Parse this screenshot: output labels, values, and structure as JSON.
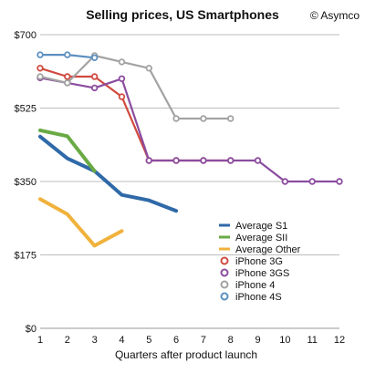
{
  "chart_data": {
    "type": "line",
    "title": "Selling prices, US Smartphones",
    "copyright": "© Asymco",
    "xlabel": "Quarters after product launch",
    "ylabel": "",
    "xlim": [
      1,
      12
    ],
    "ylim": [
      0,
      700
    ],
    "x_ticks": [
      1,
      2,
      3,
      4,
      5,
      6,
      7,
      8,
      9,
      10,
      11,
      12
    ],
    "y_ticks": [
      {
        "value": 0,
        "label": "$0"
      },
      {
        "value": 175,
        "label": "$175"
      },
      {
        "value": 350,
        "label": "$350"
      },
      {
        "value": 525,
        "label": "$525"
      },
      {
        "value": 700,
        "label": "$700"
      }
    ],
    "grid": "horizontal",
    "legend_position": "inside-bottom-right",
    "series": [
      {
        "name": "Average S1",
        "color": "#2f69a8",
        "style": "thick",
        "x": [
          1,
          2,
          3,
          4,
          5,
          6
        ],
        "values": [
          457,
          405,
          375,
          318,
          305,
          280
        ]
      },
      {
        "name": "Average SII",
        "color": "#6aaa45",
        "style": "thick",
        "x": [
          1,
          2,
          3
        ],
        "values": [
          472,
          458,
          375
        ]
      },
      {
        "name": "Average Other",
        "color": "#f0b23c",
        "style": "thick",
        "x": [
          1,
          2,
          3,
          4
        ],
        "values": [
          308,
          272,
          197,
          232
        ]
      },
      {
        "name": "iPhone 3G",
        "color": "#d04a40",
        "style": "marker",
        "x": [
          1,
          2,
          3,
          4,
          5,
          6,
          7,
          8
        ],
        "values": [
          620,
          600,
          600,
          552,
          400,
          400,
          400,
          400
        ]
      },
      {
        "name": "iPhone 3GS",
        "color": "#8b4c9f",
        "style": "marker",
        "x": [
          1,
          2,
          3,
          4,
          5,
          6,
          7,
          8,
          9,
          10,
          11,
          12
        ],
        "values": [
          597,
          585,
          573,
          595,
          400,
          400,
          400,
          400,
          400,
          350,
          350,
          350
        ]
      },
      {
        "name": "iPhone 4",
        "color": "#a3a3a3",
        "style": "marker",
        "x": [
          1,
          2,
          3,
          4,
          5,
          6,
          7,
          8
        ],
        "values": [
          600,
          585,
          650,
          635,
          620,
          500,
          500,
          500
        ]
      },
      {
        "name": "iPhone 4S",
        "color": "#5b8fc0",
        "style": "marker",
        "x": [
          1,
          2,
          3
        ],
        "values": [
          652,
          652,
          645
        ]
      }
    ]
  }
}
